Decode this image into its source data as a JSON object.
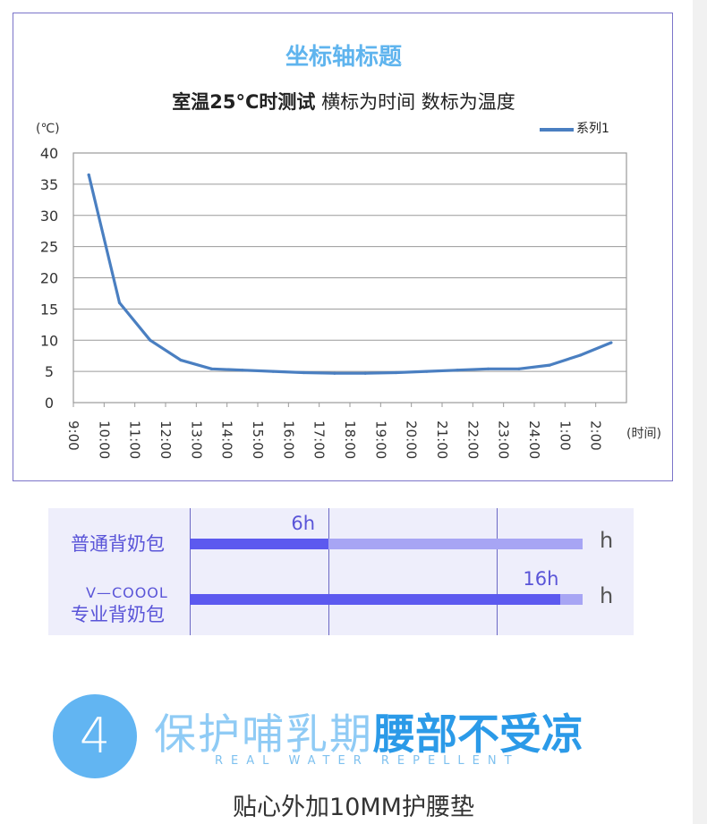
{
  "chart_data": {
    "type": "line",
    "title": "坐标轴标题",
    "subtitle_bold": "室温25°C时测试",
    "subtitle_rest": " 横标为时间 数标为温度",
    "y_unit_label": "(℃)",
    "x_unit_label": "(时间)",
    "ylim": [
      0,
      40
    ],
    "y_ticks": [
      "40",
      "35",
      "30",
      "25",
      "20",
      "15",
      "10",
      "5",
      "0"
    ],
    "categories": [
      "9:00",
      "10:00",
      "11:00",
      "12:00",
      "13:00",
      "14:00",
      "15:00",
      "16:00",
      "17:00",
      "18:00",
      "19:00",
      "20:00",
      "21:00",
      "22:00",
      "23:00",
      "24:00",
      "1:00",
      "2:00"
    ],
    "grid": true,
    "legend_position": "top-right",
    "series": [
      {
        "name": "系列1",
        "color": "#4a7fc1",
        "values": [
          36.5,
          16,
          10,
          6.8,
          5.4,
          5.2,
          5.0,
          4.8,
          4.7,
          4.7,
          4.8,
          5.0,
          5.2,
          5.4,
          5.4,
          6.0,
          7.6,
          9.6
        ]
      }
    ]
  },
  "comparison": {
    "rows": [
      {
        "label": "普通背奶包",
        "sub_label": "",
        "value": 6,
        "value_text": "6h",
        "unit": "h"
      },
      {
        "label": "专业背奶包",
        "sub_label": "V—COOOL",
        "value": 16,
        "value_text": "16h",
        "unit": "h"
      }
    ],
    "colors": {
      "filled": "#5c59ef",
      "remaining": "#a7a5f4",
      "panel": "#eeeefb",
      "text": "#5a55d8"
    }
  },
  "feature": {
    "number": "4",
    "headline_light": "保护哺乳期",
    "headline_bold": "腰部不受凉",
    "tagline": "REAL WATER REPELLENT",
    "caption": "贴心外加10MM护腰垫",
    "colors": {
      "circle": "#62b5f2",
      "light": "#8fcbf5",
      "bold": "#2b9ae8"
    }
  }
}
